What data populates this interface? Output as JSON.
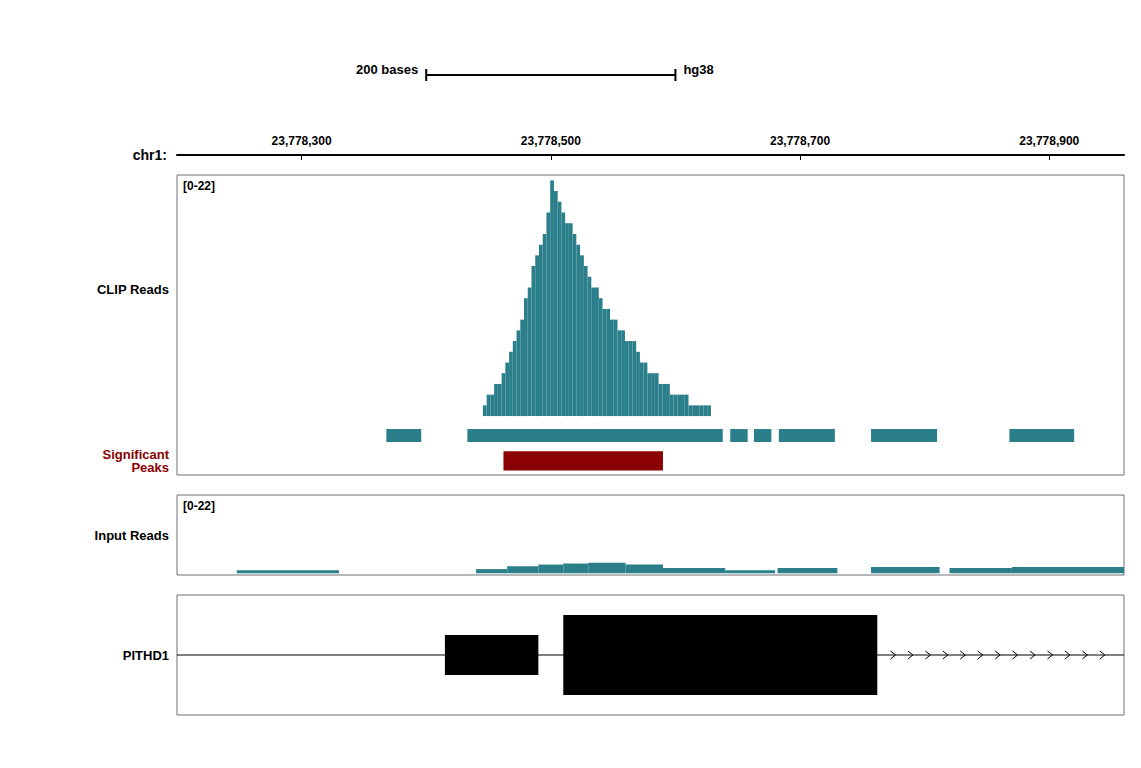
{
  "chart_data": {
    "type": "tracks",
    "xlabel": "chr1:",
    "xlim": [
      23778200,
      23778960
    ],
    "xticks": [
      {
        "value": 23778300,
        "label": "23,778,300"
      },
      {
        "value": 23778500,
        "label": "23,778,500"
      },
      {
        "value": 23778700,
        "label": "23,778,700"
      },
      {
        "value": 23778900,
        "label": "23,778,900"
      }
    ],
    "tick_labels": "x",
    "grid": false,
    "scale_bar": {
      "start": 23778400,
      "end": 23778600,
      "label": "200 bases",
      "genome": "hg38"
    },
    "tracks": [
      {
        "ylabel": "CLIP Reads",
        "annotation": "[0-22]",
        "ylim": [
          -5.5,
          22.5
        ],
        "series": [
          {
            "type": "bar",
            "color": "#2a7f8a",
            "width": 3,
            "x": [
              23778447,
              23778450,
              23778453,
              23778456,
              23778459,
              23778462,
              23778465,
              23778468,
              23778471,
              23778474,
              23778477,
              23778480,
              23778483,
              23778486,
              23778489,
              23778492,
              23778495,
              23778498,
              23778501,
              23778504,
              23778507,
              23778510,
              23778513,
              23778516,
              23778519,
              23778522,
              23778525,
              23778528,
              23778531,
              23778534,
              23778537,
              23778540,
              23778543,
              23778546,
              23778549,
              23778552,
              23778555,
              23778558,
              23778561,
              23778564,
              23778567,
              23778570,
              23778573,
              23778576,
              23778579,
              23778582,
              23778585,
              23778588,
              23778591,
              23778594,
              23778597,
              23778600,
              23778603,
              23778606,
              23778609,
              23778612,
              23778615,
              23778618,
              23778621,
              23778624,
              23778627,
              23778630
            ],
            "values": [
              1,
              2,
              2,
              3,
              3,
              4,
              5,
              6,
              7,
              8,
              9,
              11,
              12,
              14,
              15,
              16,
              17,
              19,
              22,
              21,
              20,
              19,
              18,
              18,
              17,
              16,
              15,
              14,
              13,
              12,
              12,
              11,
              10,
              10,
              9,
              9,
              8,
              8,
              7,
              7,
              7,
              6,
              5,
              5,
              4,
              4,
              4,
              3,
              3,
              3,
              2,
              2,
              2,
              2,
              2,
              1,
              1,
              1,
              1,
              1,
              1,
              0
            ]
          },
          {
            "type": "interval",
            "color": "#2a7f8a",
            "starts": [
              23778368,
              23778433,
              23778644,
              23778663,
              23778683,
              23778757,
              23778868
            ],
            "ends": [
              23778396,
              23778638,
              23778658,
              23778677,
              23778728,
              23778810,
              23778920
            ]
          },
          {
            "type": "interval",
            "color": "#8b0000",
            "label": "Significant\nPeaks",
            "starts": [
              23778462
            ],
            "ends": [
              23778590
            ]
          }
        ]
      },
      {
        "ylabel": "Input Reads",
        "annotation": "[0-22]",
        "ylim": [
          -0.5,
          22.5
        ],
        "series": [
          {
            "type": "bar",
            "color": "#2a7f8a",
            "starts": [
              23778248,
              23778440,
              23778465,
              23778490,
              23778510,
              23778530,
              23778560,
              23778590,
              23778640,
              23778682,
              23778757,
              23778820,
              23778870
            ],
            "ends": [
              23778330,
              23778465,
              23778490,
              23778510,
              23778530,
              23778560,
              23778590,
              23778640,
              23778680,
              23778730,
              23778812,
              23778870,
              23778960
            ],
            "values": [
              0.9,
              1.2,
              2.0,
              2.5,
              2.8,
              3.0,
              2.5,
              1.5,
              0.9,
              1.5,
              1.8,
              1.5,
              1.8
            ]
          }
        ]
      },
      {
        "ylabel": "PITHD1",
        "ylim": [
          0,
          15
        ],
        "series": [
          {
            "type": "gene",
            "color": "#000000",
            "line": [
              23778200,
              23778960
            ],
            "y": 7.5,
            "exons": [
              {
                "start": 23778415,
                "end": 23778490,
                "height": 5
              },
              {
                "start": 23778510,
                "end": 23778762,
                "height": 10
              }
            ],
            "arrows": [
              23778775,
              23778789,
              23778803,
              23778817,
              23778831,
              23778845,
              23778859,
              23778873,
              23778887,
              23778901,
              23778915,
              23778929,
              23778943
            ]
          }
        ]
      }
    ]
  }
}
